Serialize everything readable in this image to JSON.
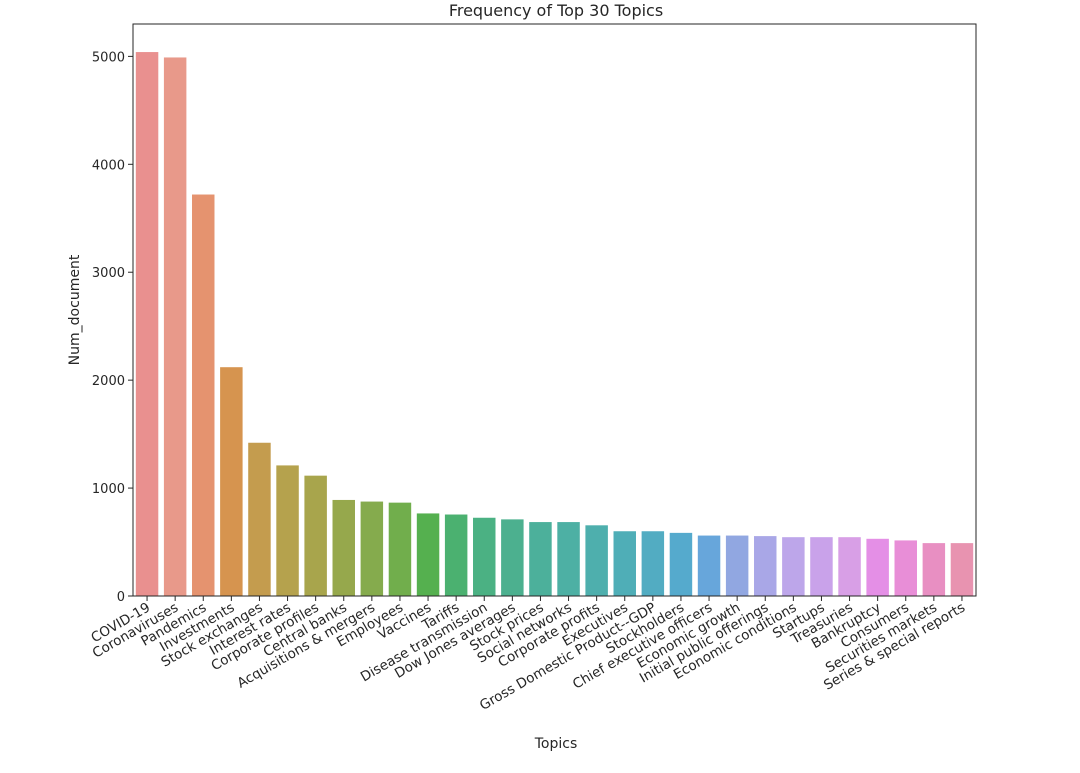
{
  "chart_data": {
    "type": "bar",
    "title": "Frequency of Top 30 Topics",
    "xlabel": "Topics",
    "ylabel": "Num_document",
    "ylim": [
      0,
      5300
    ],
    "yticks": [
      0,
      1000,
      2000,
      3000,
      4000,
      5000
    ],
    "grid": false,
    "legend": "none",
    "categories": [
      "COVID-19",
      "Coronaviruses",
      "Pandemics",
      "Investments",
      "Stock exchanges",
      "Interest rates",
      "Corporate profiles",
      "Central banks",
      "Acquisitions & mergers",
      "Employees",
      "Vaccines",
      "Tariffs",
      "Disease transmission",
      "Dow Jones averages",
      "Stock prices",
      "Social networks",
      "Corporate profits",
      "Executives",
      "Gross Domestic Product--GDP",
      "Stockholders",
      "Chief executive officers",
      "Economic growth",
      "Initial public offerings",
      "Economic conditions",
      "Startups",
      "Treasuries",
      "Bankruptcy",
      "Consumers",
      "Securities markets",
      "Series & special reports"
    ],
    "values": [
      5040,
      4990,
      3720,
      2120,
      1420,
      1210,
      1115,
      890,
      875,
      865,
      765,
      755,
      725,
      710,
      685,
      685,
      655,
      600,
      600,
      585,
      560,
      560,
      555,
      545,
      545,
      545,
      530,
      515,
      490,
      490
    ],
    "colors": [
      "#e9908f",
      "#e8998a",
      "#e5936f",
      "#d6944f",
      "#c49c4e",
      "#b5a24d",
      "#a8a54c",
      "#96a84c",
      "#85ab4d",
      "#71ae4c",
      "#55b04f",
      "#4bb170",
      "#4bb183",
      "#4cb08f",
      "#4cb09b",
      "#4db0a4",
      "#4eafad",
      "#4faeb7",
      "#52acc2",
      "#55aacd",
      "#67a6db",
      "#91a7e1",
      "#a9a7e7",
      "#bda6ea",
      "#c9a2ea",
      "#d89fe6",
      "#e48fe6",
      "#e88ed7",
      "#e88fc2",
      "#e893b0"
    ]
  }
}
